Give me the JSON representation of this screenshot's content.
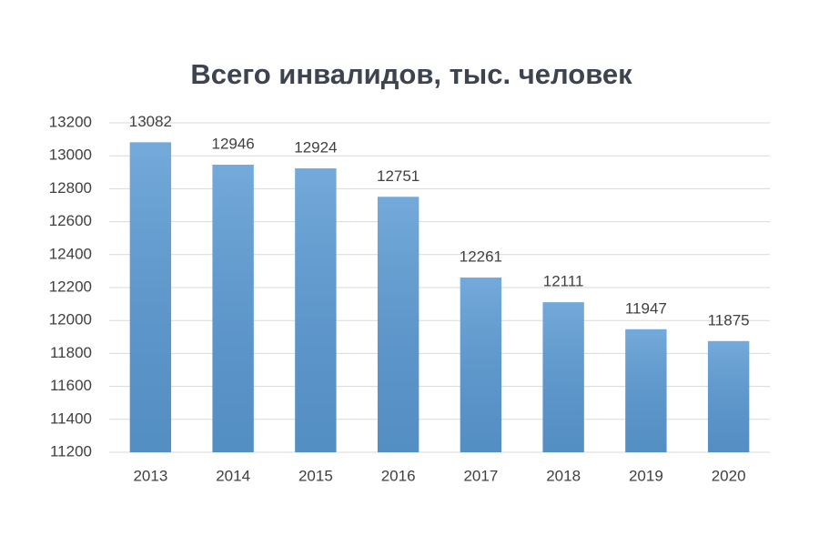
{
  "chart_data": {
    "type": "bar",
    "title": "Всего инвалидов, тыс. человек",
    "categories": [
      "2013",
      "2014",
      "2015",
      "2016",
      "2017",
      "2018",
      "2019",
      "2020"
    ],
    "values": [
      13082,
      12946,
      12924,
      12751,
      12261,
      12111,
      11947,
      11875
    ],
    "color": "#5b9bd5",
    "ylim": [
      11200,
      13200
    ],
    "yticks": [
      11200,
      11400,
      11600,
      11800,
      12000,
      12200,
      12400,
      12600,
      12800,
      13000,
      13200
    ],
    "grid": true
  }
}
